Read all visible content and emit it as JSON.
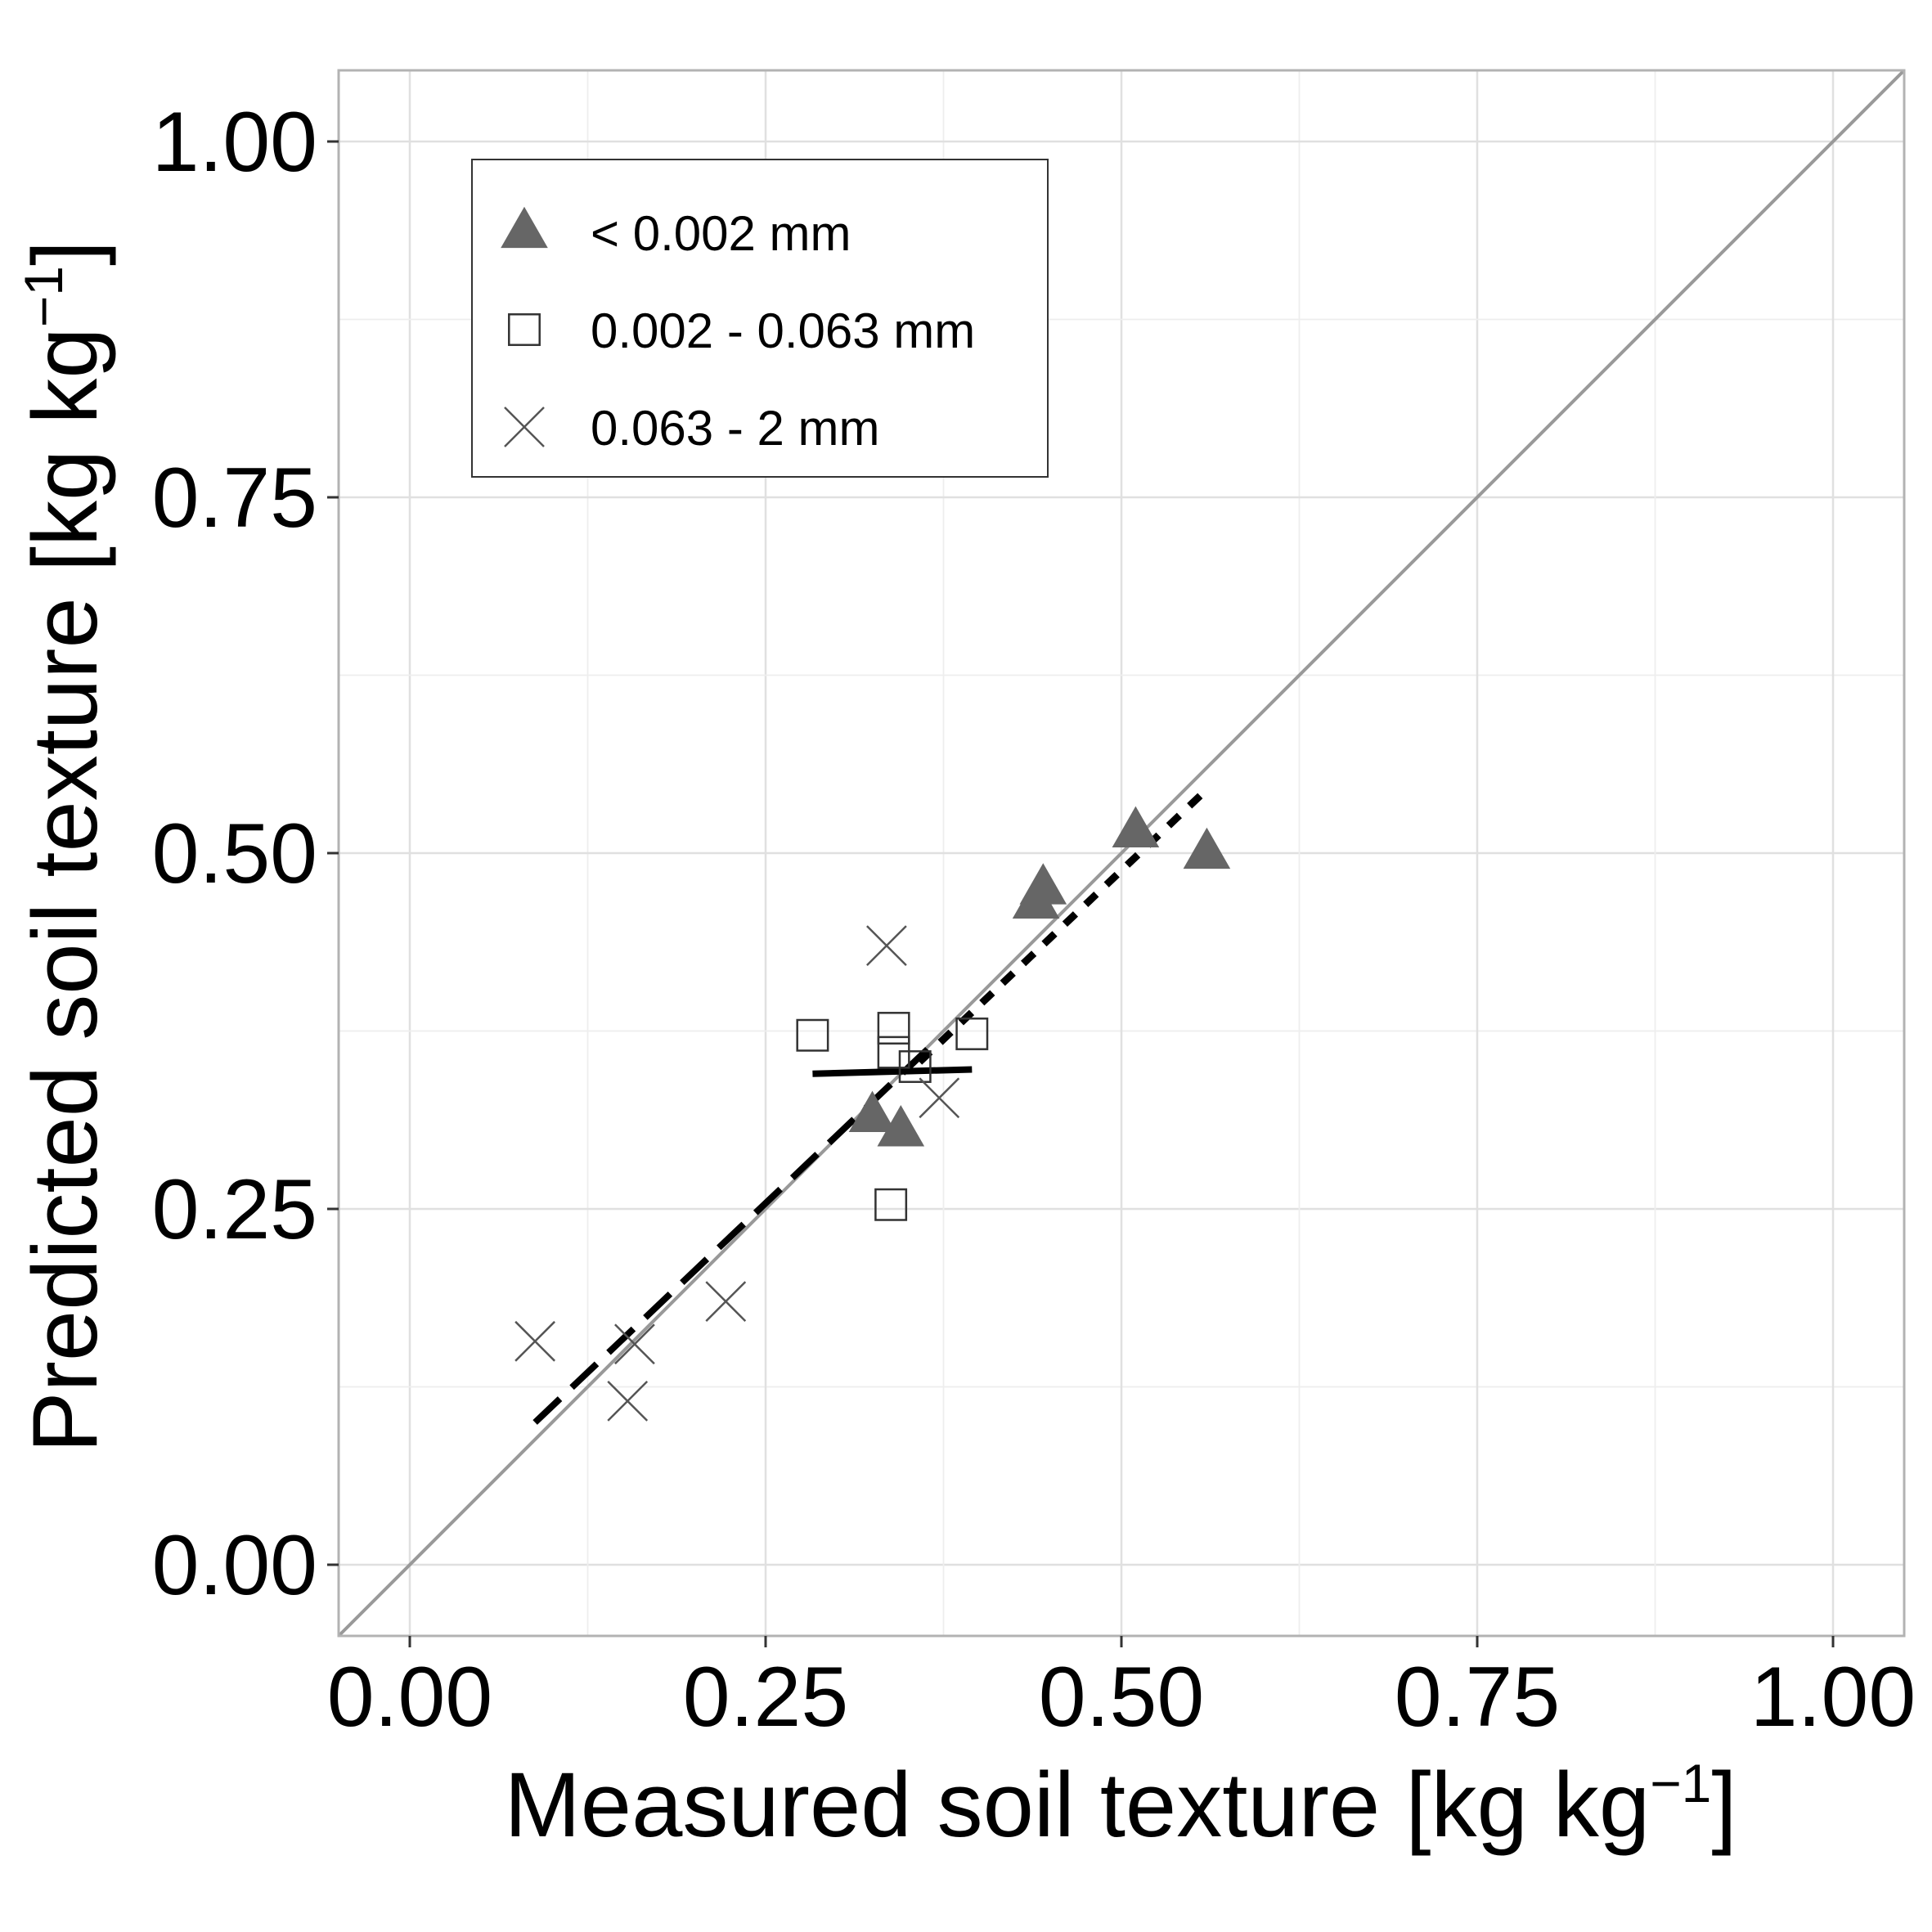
{
  "chart_data": {
    "type": "scatter",
    "title": "",
    "xlabel": "Measured soil texture [kg kg",
    "ylabel": "Predicted soil texture [kg kg",
    "xlabel_sup": "−1",
    "ylabel_sup": "−1",
    "xlabel_end": "]",
    "ylabel_end": "]",
    "xlim": [
      -0.05,
      1.05
    ],
    "ylim": [
      -0.05,
      1.05
    ],
    "xticks": [
      0,
      0.25,
      0.5,
      0.75,
      1
    ],
    "yticks": [
      0,
      0.25,
      0.5,
      0.75,
      1
    ],
    "xtick_labels": [
      "0.00",
      "0.25",
      "0.50",
      "0.75",
      "1.00"
    ],
    "ytick_labels": [
      "0.00",
      "0.25",
      "0.50",
      "0.75",
      "1.00"
    ],
    "grid": true,
    "legend_position": "top-left",
    "identity_line": true,
    "series": [
      {
        "name": "< 0.002 mm",
        "marker": "triangle-filled",
        "color": "#666666",
        "line_style": "dotted",
        "points": [
          [
            0.325,
            0.315
          ],
          [
            0.345,
            0.305
          ],
          [
            0.44,
            0.465
          ],
          [
            0.445,
            0.475
          ],
          [
            0.51,
            0.515
          ],
          [
            0.56,
            0.5
          ]
        ],
        "fit": [
          [
            0.36,
            0.355
          ],
          [
            0.555,
            0.54
          ]
        ]
      },
      {
        "name": "0.002 - 0.063 mm",
        "marker": "square-open",
        "color": "#333333",
        "line_style": "solid",
        "points": [
          [
            0.283,
            0.372
          ],
          [
            0.34,
            0.377
          ],
          [
            0.34,
            0.36
          ],
          [
            0.355,
            0.35
          ],
          [
            0.395,
            0.373
          ],
          [
            0.338,
            0.253
          ]
        ],
        "fit": [
          [
            0.283,
            0.345
          ],
          [
            0.395,
            0.348
          ]
        ]
      },
      {
        "name": "0.063 - 2 mm",
        "marker": "cross",
        "color": "#555555",
        "line_style": "dashed",
        "points": [
          [
            0.088,
            0.157
          ],
          [
            0.153,
            0.115
          ],
          [
            0.158,
            0.155
          ],
          [
            0.222,
            0.185
          ],
          [
            0.335,
            0.435
          ],
          [
            0.372,
            0.328
          ]
        ],
        "fit": [
          [
            0.088,
            0.1
          ],
          [
            0.372,
            0.37
          ]
        ]
      }
    ]
  }
}
